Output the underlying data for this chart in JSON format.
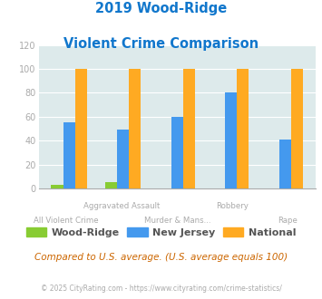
{
  "title_line1": "2019 Wood-Ridge",
  "title_line2": "Violent Crime Comparison",
  "categories": [
    "All Violent Crime",
    "Aggravated Assault",
    "Murder & Mans...",
    "Robbery",
    "Rape"
  ],
  "label_upper_row": [
    false,
    true,
    false,
    true,
    false
  ],
  "series": {
    "Wood-Ridge": [
      3,
      5,
      0,
      0,
      0
    ],
    "New Jersey": [
      55,
      49,
      60,
      80,
      41
    ],
    "National": [
      100,
      100,
      100,
      100,
      100
    ]
  },
  "colors": {
    "Wood-Ridge": "#88cc33",
    "New Jersey": "#4499ee",
    "National": "#ffaa22"
  },
  "ylim": [
    0,
    120
  ],
  "yticks": [
    0,
    20,
    40,
    60,
    80,
    100,
    120
  ],
  "background_color": "#ddeaeb",
  "grid_color": "#ffffff",
  "footer_text": "Compared to U.S. average. (U.S. average equals 100)",
  "copyright_text": "© 2025 CityRating.com - https://www.cityrating.com/crime-statistics/",
  "title_color": "#1177cc",
  "footer_color": "#cc6600",
  "copyright_color": "#aaaaaa",
  "tick_label_color": "#aaaaaa",
  "bar_width": 0.22
}
